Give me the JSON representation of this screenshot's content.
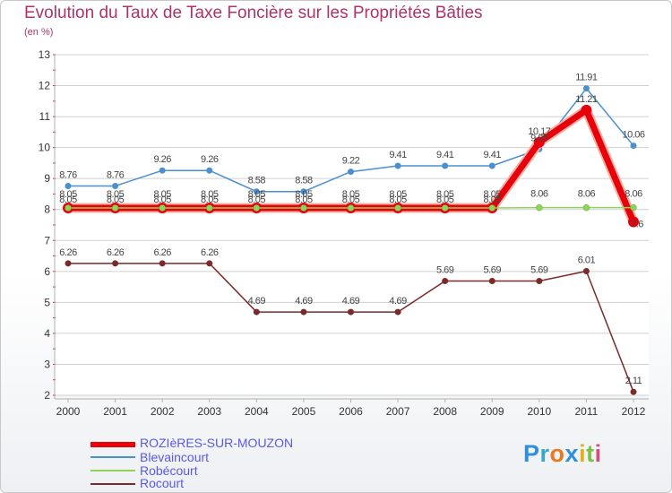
{
  "colors": {
    "title": "#b0326a",
    "grid": "#cccccc",
    "legend_text": "#5a5ae0"
  },
  "logo": {
    "letters": [
      "P",
      "r",
      "o",
      "x",
      "i",
      "t",
      "i"
    ],
    "colors": [
      "#2f8fd8",
      "#3aa7c9",
      "#e8791e",
      "#2f8fd8",
      "#e0b020",
      "#7ac143",
      "#d94b7a"
    ]
  },
  "chart_data": {
    "type": "line",
    "title": "Evolution du Taux de Taxe Foncière sur les Propriétés Bâties",
    "subtitle": "(en %)",
    "xlabel": "",
    "ylabel": "",
    "ylim": [
      2,
      13
    ],
    "y_ticks": [
      "2",
      "3",
      "4",
      "5",
      "6",
      "7",
      "8",
      "9",
      "10",
      "11",
      "12",
      "13"
    ],
    "x": [
      "2000",
      "2001",
      "2002",
      "2003",
      "2004",
      "2005",
      "2006",
      "2007",
      "2008",
      "2009",
      "2010",
      "2011",
      "2012"
    ],
    "grid": "horizontal",
    "legend_position": "bottom-left",
    "series": [
      {
        "name": "Blevaincourt",
        "color": "#4a90d0",
        "values": [
          8.76,
          8.76,
          9.26,
          9.26,
          8.58,
          8.58,
          9.22,
          9.41,
          9.41,
          9.41,
          9.95,
          11.91,
          10.06
        ],
        "labels": [
          "8.76",
          "8.76",
          "9.26",
          "9.26",
          "8.58",
          "8.58",
          "9.22",
          "9.41",
          "9.41",
          "9.41",
          "9.95",
          "11.91",
          "10.06"
        ]
      },
      {
        "name": "Robécourt",
        "color": "#8ed45a",
        "values": [
          8.05,
          8.05,
          8.05,
          8.05,
          8.05,
          8.05,
          8.05,
          8.05,
          8.05,
          8.05,
          8.06,
          8.06,
          8.06
        ],
        "labels": [
          "8.05",
          "8.05",
          "8.05",
          "8.05",
          "8.05",
          "8.05",
          "8.05",
          "8.05",
          "8.05",
          "8.05",
          "8.06",
          "8.06",
          "8.06"
        ]
      },
      {
        "name": "Rocourt",
        "color": "#7a2a2a",
        "values": [
          6.26,
          6.26,
          6.26,
          6.26,
          4.69,
          4.69,
          4.69,
          4.69,
          5.69,
          5.69,
          5.69,
          6.01,
          2.11
        ],
        "labels": [
          "6.26",
          "6.26",
          "6.26",
          "6.26",
          "4.69",
          "4.69",
          "4.69",
          "4.69",
          "5.69",
          "5.69",
          "5.69",
          "6.01",
          "2.11"
        ]
      },
      {
        "name": "ROZIèRES-SUR-MOUZON",
        "color": "#e8000c",
        "values": [
          8.05,
          8.05,
          8.05,
          8.05,
          8.05,
          8.05,
          8.05,
          8.05,
          8.05,
          8.05,
          10.17,
          11.21,
          7.6
        ],
        "labels": [
          "8.05",
          "8.05",
          "8.05",
          "8.05",
          "8.05",
          "8.05",
          "8.05",
          "8.05",
          "8.05",
          "8.05",
          "10.17",
          "11.21",
          "7.6"
        ]
      }
    ],
    "legend": [
      "ROZIèRES-SUR-MOUZON",
      "Blevaincourt",
      "Robécourt",
      "Rocourt"
    ]
  }
}
